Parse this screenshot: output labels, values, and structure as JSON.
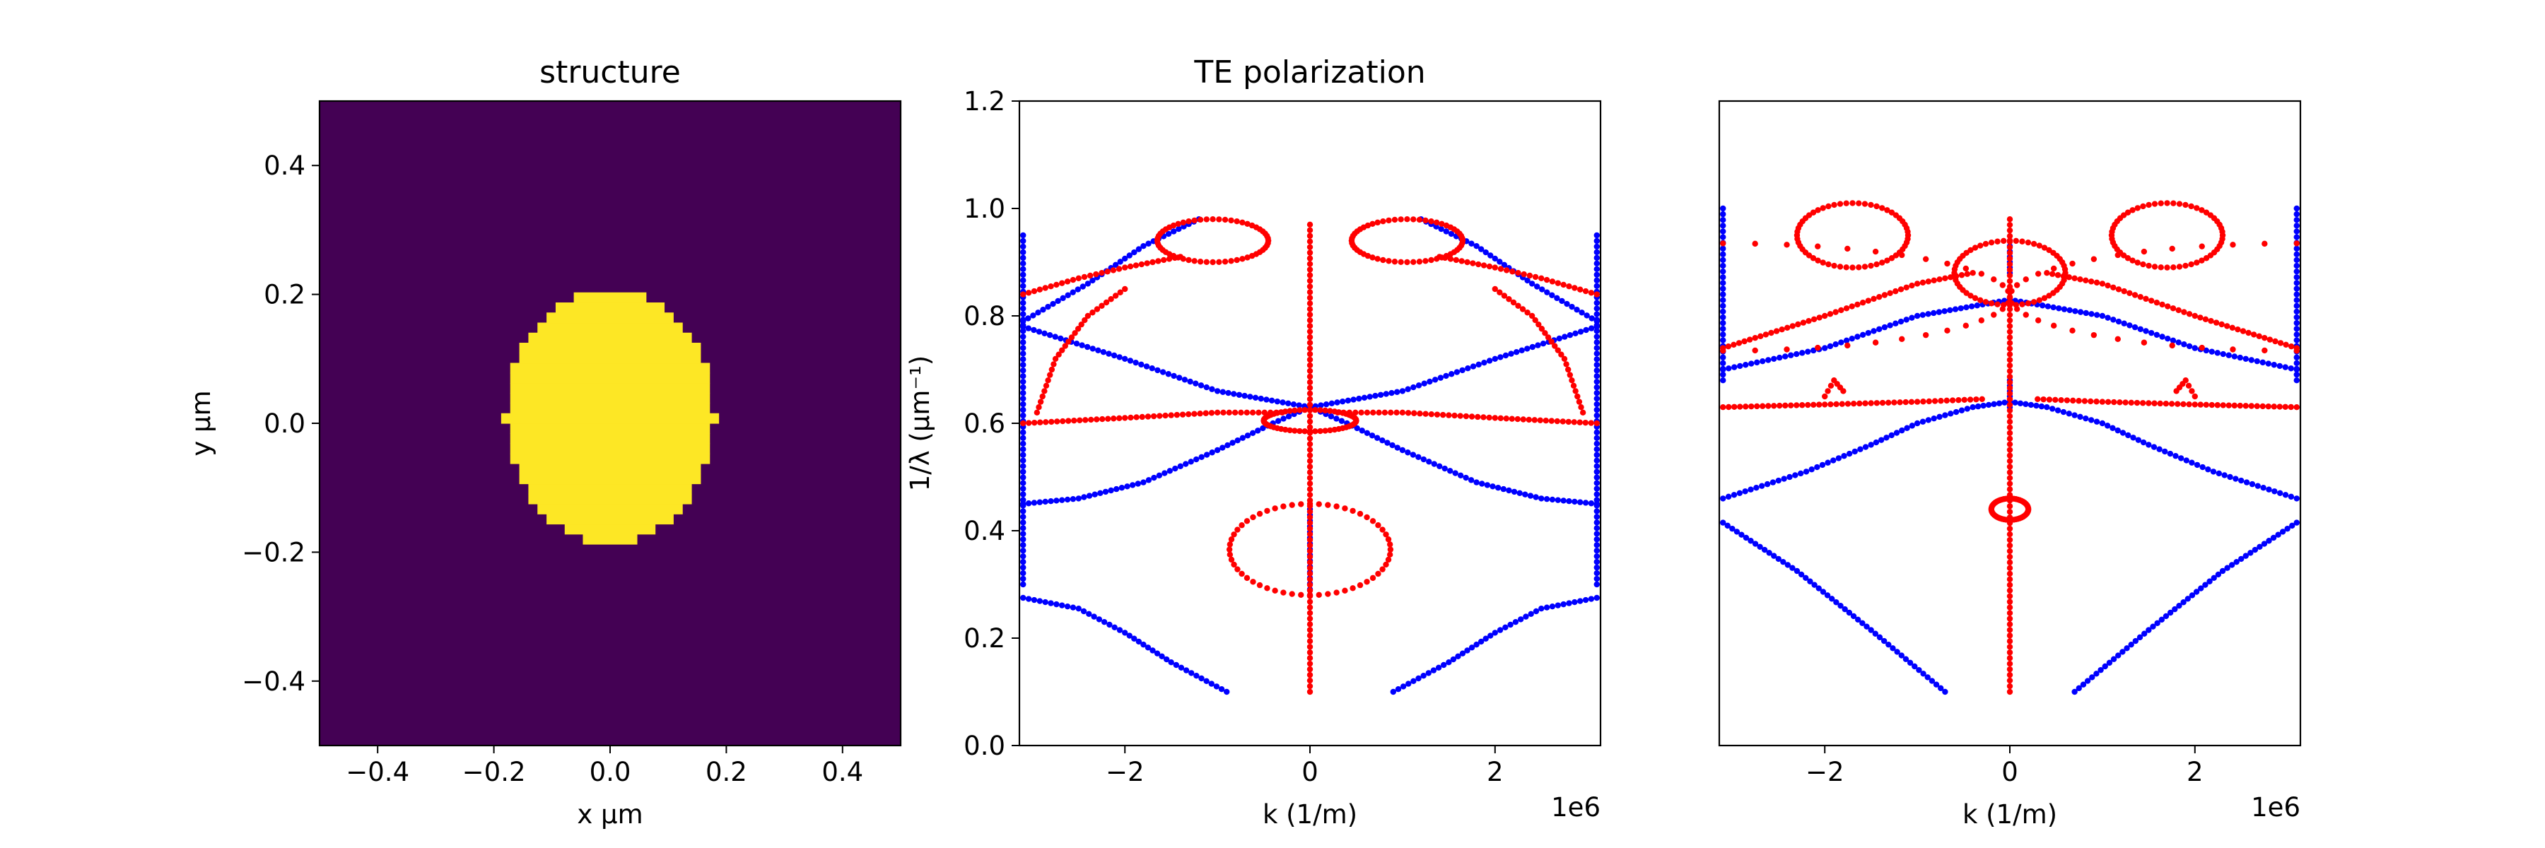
{
  "chart_data": [
    {
      "type": "heatmap",
      "title": "structure",
      "xlabel": "x μm",
      "ylabel": "y μm",
      "xlim": [
        -0.5,
        0.5
      ],
      "ylim": [
        -0.5,
        0.5
      ],
      "xticks": [
        "−0.4",
        "−0.2",
        "0.0",
        "0.2",
        "0.4"
      ],
      "yticks": [
        "−0.4",
        "−0.2",
        "0.0",
        "0.2",
        "0.4"
      ],
      "grid": false,
      "colors": {
        "background": "#440154",
        "inclusion": "#fde725"
      },
      "inclusion": {
        "shape": "ellipse",
        "center_x": 0.0,
        "center_y": 0.01,
        "radius_x": 0.18,
        "radius_y": 0.195
      }
    },
    {
      "type": "scatter",
      "title": "TE polarization",
      "xlabel": "k (1/m)",
      "ylabel": "1/λ (μm⁻¹)",
      "x_scale_label": "1e6",
      "xlim": [
        -3.14,
        3.14
      ],
      "ylim": [
        0.0,
        1.2
      ],
      "xticks": [
        "−2",
        "0",
        "2"
      ],
      "yticks": [
        "0.0",
        "0.2",
        "0.4",
        "0.6",
        "0.8",
        "1.0",
        "1.2"
      ],
      "grid": false,
      "series": [
        {
          "color": "#0000ff",
          "curves": [
            {
              "x": [
                -3.1,
                -2.5,
                -2.0,
                -1.5,
                -0.9
              ],
              "y": [
                0.275,
                0.255,
                0.21,
                0.155,
                0.1
              ]
            },
            {
              "x": [
                0.9,
                1.5,
                2.0,
                2.5,
                3.1
              ],
              "y": [
                0.1,
                0.155,
                0.21,
                0.255,
                0.275
              ]
            },
            {
              "x": [
                -3.1,
                -2.5,
                -1.8,
                -1.0,
                -0.4,
                0.0
              ],
              "y": [
                0.45,
                0.46,
                0.49,
                0.55,
                0.6,
                0.63
              ]
            },
            {
              "x": [
                0.0,
                0.4,
                1.0,
                1.8,
                2.5,
                3.1
              ],
              "y": [
                0.63,
                0.6,
                0.55,
                0.49,
                0.46,
                0.45
              ]
            },
            {
              "x": [
                -3.1,
                -2.0,
                -1.0,
                0.0,
                1.0,
                2.0,
                3.1
              ],
              "y": [
                0.78,
                0.72,
                0.66,
                0.63,
                0.66,
                0.72,
                0.78
              ]
            },
            {
              "x": [
                -3.1,
                -2.4,
                -1.8,
                -1.2
              ],
              "y": [
                0.79,
                0.86,
                0.93,
                0.98
              ]
            },
            {
              "x": [
                1.2,
                1.8,
                2.4,
                3.1
              ],
              "y": [
                0.98,
                0.93,
                0.86,
                0.79
              ]
            },
            {
              "x": [
                0.0,
                0.0
              ],
              "y": [
                0.28,
                0.44
              ]
            },
            {
              "x": [
                -3.1,
                -3.1
              ],
              "y": [
                0.3,
                0.95
              ]
            },
            {
              "x": [
                3.1,
                3.1
              ],
              "y": [
                0.3,
                0.95
              ]
            }
          ]
        },
        {
          "color": "#ff0000",
          "curves": [
            {
              "x": [
                0.0,
                0.0
              ],
              "y": [
                0.1,
                0.97
              ]
            },
            {
              "ellipse": [
                0.0,
                0.365,
                0.87,
                0.085
              ]
            },
            {
              "ellipse": [
                0.0,
                0.605,
                0.5,
                0.02
              ]
            },
            {
              "ellipse": [
                -1.05,
                0.94,
                0.6,
                0.04
              ]
            },
            {
              "ellipse": [
                1.05,
                0.94,
                0.6,
                0.04
              ]
            },
            {
              "x": [
                -3.1,
                -2.5,
                -2.0,
                -1.4
              ],
              "y": [
                0.84,
                0.87,
                0.89,
                0.91
              ]
            },
            {
              "x": [
                1.4,
                2.0,
                2.5,
                3.1
              ],
              "y": [
                0.91,
                0.89,
                0.87,
                0.84
              ]
            },
            {
              "x": [
                -3.1,
                -2.0,
                -1.0,
                -0.3
              ],
              "y": [
                0.6,
                0.61,
                0.62,
                0.62
              ]
            },
            {
              "x": [
                0.3,
                1.0,
                2.0,
                3.1
              ],
              "y": [
                0.62,
                0.62,
                0.61,
                0.6
              ]
            },
            {
              "x": [
                -2.95,
                -2.75,
                -2.4,
                -2.0
              ],
              "y": [
                0.62,
                0.72,
                0.8,
                0.85
              ]
            },
            {
              "x": [
                2.0,
                2.4,
                2.75,
                2.95
              ],
              "y": [
                0.85,
                0.8,
                0.72,
                0.62
              ]
            }
          ]
        }
      ]
    },
    {
      "type": "scatter",
      "title": "",
      "xlabel": "k (1/m)",
      "ylabel": "",
      "x_scale_label": "1e6",
      "xlim": [
        -3.14,
        3.14
      ],
      "ylim": [
        0.0,
        1.2
      ],
      "xticks": [
        "−2",
        "0",
        "2"
      ],
      "yticks": [],
      "grid": false,
      "series": [
        {
          "color": "#0000ff",
          "curves": [
            {
              "x": [
                -3.1,
                -2.3,
                -1.5,
                -0.7
              ],
              "y": [
                0.415,
                0.325,
                0.215,
                0.1
              ]
            },
            {
              "x": [
                0.7,
                1.5,
                2.3,
                3.1
              ],
              "y": [
                0.1,
                0.215,
                0.325,
                0.415
              ]
            },
            {
              "x": [
                -3.1,
                -2.2,
                -1.5,
                -1.0,
                -0.4,
                0.0
              ],
              "y": [
                0.46,
                0.51,
                0.56,
                0.6,
                0.63,
                0.64
              ]
            },
            {
              "x": [
                0.0,
                0.4,
                1.0,
                1.5,
                2.2,
                3.1
              ],
              "y": [
                0.64,
                0.63,
                0.6,
                0.56,
                0.51,
                0.46
              ]
            },
            {
              "x": [
                -3.1,
                -2.0,
                -1.0,
                0.0,
                1.0,
                2.0,
                3.1
              ],
              "y": [
                0.7,
                0.74,
                0.8,
                0.83,
                0.8,
                0.74,
                0.7
              ]
            },
            {
              "x": [
                0.0,
                0.0
              ],
              "y": [
                0.63,
                0.68
              ]
            },
            {
              "x": [
                0.0,
                0.0
              ],
              "y": [
                0.88,
                0.94
              ]
            },
            {
              "x": [
                -3.1,
                -3.1
              ],
              "y": [
                0.68,
                1.0
              ]
            },
            {
              "x": [
                3.1,
                3.1
              ],
              "y": [
                0.68,
                1.0
              ]
            }
          ]
        },
        {
          "color": "#ff0000",
          "curves": [
            {
              "x": [
                0.0,
                0.0
              ],
              "y": [
                0.1,
                0.98
              ]
            },
            {
              "ellipse": [
                0.0,
                0.44,
                0.2,
                0.02
              ]
            },
            {
              "ellipse": [
                -3.1,
                0.835,
                3.1,
                0.1
              ]
            },
            {
              "ellipse": [
                3.1,
                0.835,
                3.1,
                0.1
              ]
            },
            {
              "ellipse": [
                0.0,
                0.88,
                0.6,
                0.06
              ]
            },
            {
              "ellipse": [
                -1.7,
                0.95,
                0.6,
                0.06
              ]
            },
            {
              "ellipse": [
                1.7,
                0.95,
                0.6,
                0.06
              ]
            },
            {
              "x": [
                -3.1,
                -2.0,
                -1.0,
                -0.4
              ],
              "y": [
                0.74,
                0.8,
                0.86,
                0.88
              ]
            },
            {
              "x": [
                0.4,
                1.0,
                2.0,
                3.1
              ],
              "y": [
                0.88,
                0.86,
                0.8,
                0.74
              ]
            },
            {
              "x": [
                -3.1,
                -2.0,
                -1.0,
                -0.3
              ],
              "y": [
                0.63,
                0.635,
                0.64,
                0.645
              ]
            },
            {
              "x": [
                0.3,
                1.0,
                2.0,
                3.1
              ],
              "y": [
                0.645,
                0.64,
                0.635,
                0.63
              ]
            },
            {
              "x": [
                -2.0,
                -1.9,
                -1.8
              ],
              "y": [
                0.65,
                0.68,
                0.66
              ]
            },
            {
              "x": [
                1.8,
                1.9,
                2.0
              ],
              "y": [
                0.66,
                0.68,
                0.65
              ]
            }
          ]
        }
      ]
    }
  ]
}
